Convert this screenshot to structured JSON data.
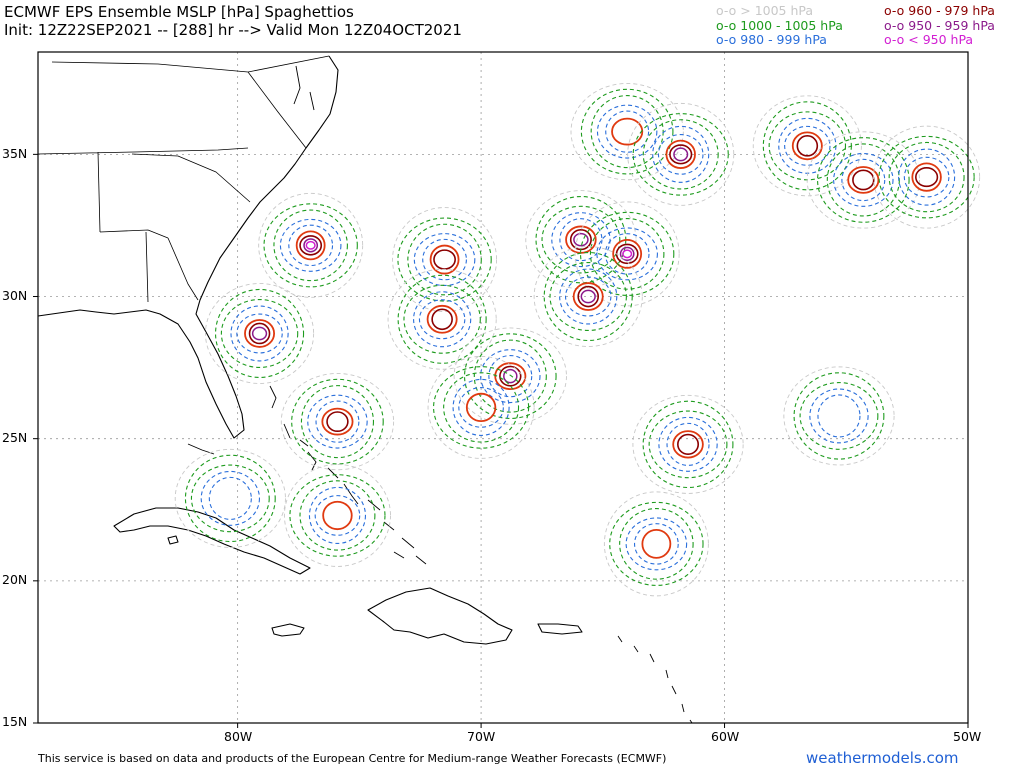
{
  "header": {
    "title": "ECMWF EPS Ensemble MSLP [hPa] Spaghettios",
    "subtitle": "Init: 12Z22SEP2021 -- [288] hr --> Valid Mon 12Z04OCT2021"
  },
  "legend": [
    {
      "label": "o-o > 1005 hPa",
      "color": "#c8c8c8"
    },
    {
      "label": "o-o 1000 - 1005 hPa",
      "color": "#1e9b1e"
    },
    {
      "label": "o-o 980 - 999 hPa",
      "color": "#2a6fdb"
    },
    {
      "label": "o-o 960 - 979 hPa",
      "color": "#8b0000"
    },
    {
      "label": "o-o 950 - 959 hPa",
      "color": "#8b1a8b"
    },
    {
      "label": "o-o < 950 hPa",
      "color": "#d21ed2"
    }
  ],
  "map": {
    "lat_range": [
      15,
      38.6
    ],
    "lon_range": [
      -88.2,
      -50
    ],
    "lat_ticks": [
      "15N",
      "20N",
      "25N",
      "30N",
      "35N"
    ],
    "lon_ticks": [
      "80W",
      "70W",
      "60W",
      "50W"
    ],
    "colors": {
      "above_1005": "#c8c8c8",
      "range_1000_1005": "#1e9b1e",
      "range_980_999": "#2a6fdb",
      "range_960_979": "#8b0000",
      "range_950_959": "#8b1a8b",
      "below_950": "#d21ed2",
      "outer_red": "#e03a10",
      "coast": "#000000"
    },
    "lows": [
      {
        "lat": 31.8,
        "lon": -77.0,
        "center": "below_950"
      },
      {
        "lat": 28.7,
        "lon": -79.1,
        "center": "range_950_959"
      },
      {
        "lat": 25.6,
        "lon": -75.9,
        "center": "range_960_979"
      },
      {
        "lat": 22.3,
        "lon": -75.9,
        "center": "outer_red"
      },
      {
        "lat": 22.9,
        "lon": -80.3,
        "center": "range_980_999"
      },
      {
        "lat": 31.3,
        "lon": -71.5,
        "center": "range_960_979"
      },
      {
        "lat": 29.2,
        "lon": -71.6,
        "center": "range_960_979"
      },
      {
        "lat": 27.2,
        "lon": -68.8,
        "center": "range_950_959"
      },
      {
        "lat": 26.1,
        "lon": -70.0,
        "center": "outer_red"
      },
      {
        "lat": 32.0,
        "lon": -65.9,
        "center": "range_950_959"
      },
      {
        "lat": 31.5,
        "lon": -64.0,
        "center": "below_950"
      },
      {
        "lat": 30.0,
        "lon": -65.6,
        "center": "range_950_959"
      },
      {
        "lat": 35.8,
        "lon": -64.0,
        "center": "outer_red"
      },
      {
        "lat": 35.0,
        "lon": -61.8,
        "center": "range_950_959"
      },
      {
        "lat": 24.8,
        "lon": -61.5,
        "center": "range_960_979"
      },
      {
        "lat": 21.3,
        "lon": -62.8,
        "center": "outer_red"
      },
      {
        "lat": 35.3,
        "lon": -56.6,
        "center": "range_960_979"
      },
      {
        "lat": 34.1,
        "lon": -54.3,
        "center": "range_960_979"
      },
      {
        "lat": 34.2,
        "lon": -51.7,
        "center": "range_960_979"
      },
      {
        "lat": 25.8,
        "lon": -55.3,
        "center": "range_980_999"
      }
    ]
  },
  "footer": {
    "note": "This service is based on data and products of the European Centre for Medium-range Weather Forecasts (ECMWF)",
    "brand": "weathermodels.com"
  }
}
